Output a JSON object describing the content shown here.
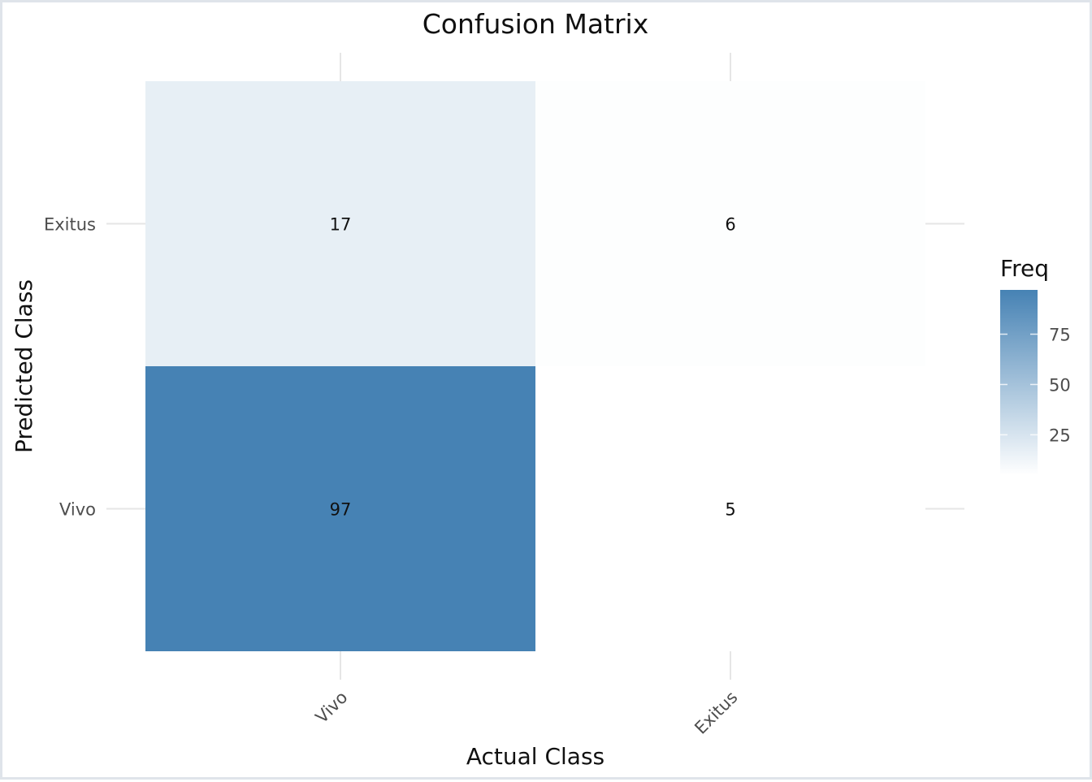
{
  "chart_data": {
    "type": "heatmap",
    "title": "Confusion Matrix",
    "xlabel": "Actual Class",
    "ylabel": "Predicted Class",
    "x_categories": [
      "Vivo",
      "Exitus"
    ],
    "y_categories": [
      "Exitus",
      "Vivo"
    ],
    "cells": [
      {
        "actual": "Vivo",
        "predicted": "Exitus",
        "value": 17
      },
      {
        "actual": "Exitus",
        "predicted": "Exitus",
        "value": 6
      },
      {
        "actual": "Vivo",
        "predicted": "Vivo",
        "value": 97
      },
      {
        "actual": "Exitus",
        "predicted": "Vivo",
        "value": 5
      }
    ],
    "legend": {
      "title": "Freq",
      "ticks": [
        25,
        50,
        75
      ],
      "range": [
        5,
        97
      ],
      "low_color": "#ffffff",
      "high_color": "#4682b4",
      "placement": "right"
    },
    "grid": true
  }
}
